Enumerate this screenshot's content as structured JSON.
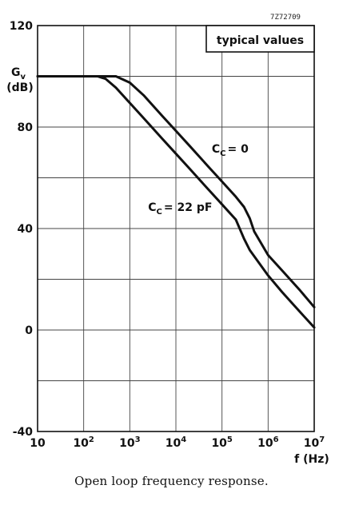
{
  "figure_code": "7Z72709",
  "caption": "Open loop frequency response.",
  "chart_data": {
    "type": "line",
    "xscale": "log",
    "xlim": [
      10,
      10000000
    ],
    "ylim": [
      -40,
      120
    ],
    "grid": true,
    "legend": "typical values",
    "ylabel_main": "G",
    "ylabel_sub": "v",
    "ylabel_unit": "(dB)",
    "xlabel": "f (Hz)",
    "x_ticks": [
      {
        "value": 10,
        "base": "10",
        "exp": ""
      },
      {
        "value": 100,
        "base": "10",
        "exp": "2"
      },
      {
        "value": 1000,
        "base": "10",
        "exp": "3"
      },
      {
        "value": 10000,
        "base": "10",
        "exp": "4"
      },
      {
        "value": 100000,
        "base": "10",
        "exp": "5"
      },
      {
        "value": 1000000,
        "base": "10",
        "exp": "6"
      },
      {
        "value": 10000000,
        "base": "10",
        "exp": "7"
      }
    ],
    "y_ticks": [
      -40,
      0,
      40,
      80,
      120
    ],
    "series": [
      {
        "name": "CC = 0",
        "label_main": "C",
        "label_sub": "C",
        "label_value": "= 0",
        "label_at": [
          60000,
          70
        ],
        "x": [
          10,
          200,
          500,
          1000,
          2000,
          5000,
          10000,
          20000,
          50000,
          100000,
          200000,
          300000,
          400000,
          500000,
          1000000,
          2000000,
          5000000,
          10000000
        ],
        "y": [
          100,
          100,
          100,
          97.5,
          92.5,
          84.5,
          78.5,
          72.5,
          64.5,
          58.5,
          52.5,
          48.5,
          44,
          38.8,
          29.5,
          23.5,
          15.5,
          9
        ]
      },
      {
        "name": "CC = 22 pF",
        "label_main": "C",
        "label_sub": "C",
        "label_value": "= 22 pF",
        "label_at": [
          2500,
          47
        ],
        "x": [
          10,
          200,
          300,
          500,
          1000,
          2000,
          5000,
          10000,
          20000,
          50000,
          100000,
          200000,
          300000,
          400000,
          1000000,
          2000000,
          5000000,
          10000000
        ],
        "y": [
          100,
          100,
          99,
          95.5,
          89.5,
          83.5,
          75.5,
          69.5,
          63.5,
          55.5,
          49.5,
          43.5,
          36,
          31.5,
          21.5,
          15,
          7,
          1
        ]
      }
    ]
  }
}
